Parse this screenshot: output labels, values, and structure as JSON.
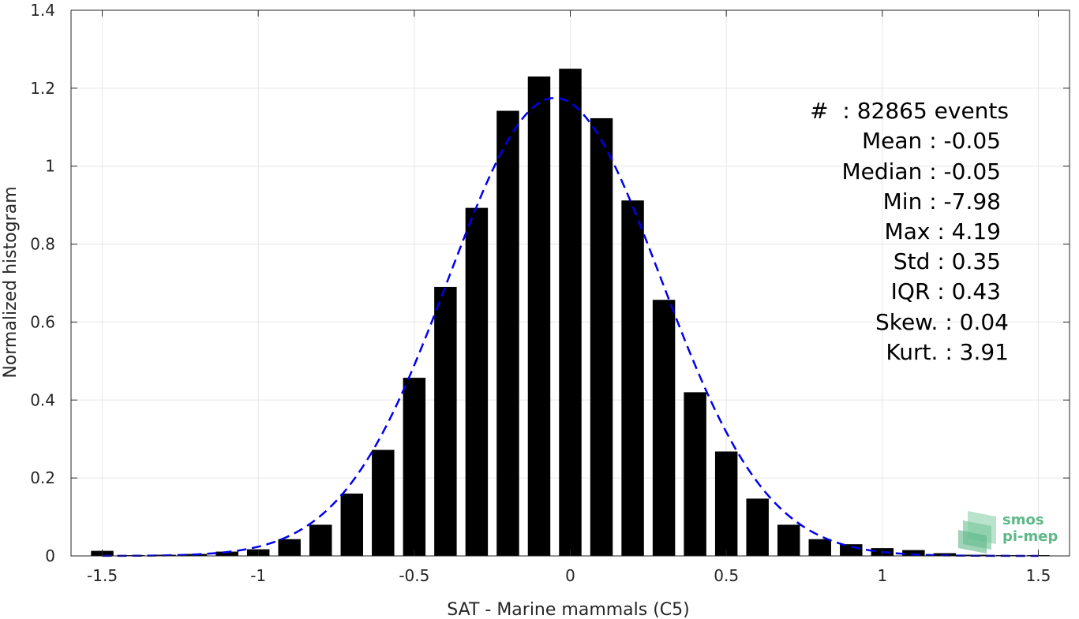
{
  "chart_data": {
    "type": "bar",
    "xlabel": "SAT - Marine mammals (C5)",
    "ylabel": "Normalized histogram",
    "xlim": [
      -1.6,
      1.6
    ],
    "ylim": [
      0,
      1.4
    ],
    "grid": true,
    "bar_color": "#000000",
    "fit_color": "#0000ee",
    "x_ticks": [
      -1.5,
      -1,
      -0.5,
      0,
      0.5,
      1,
      1.5
    ],
    "x_tick_labels": [
      "-1.5",
      "-1",
      "-0.5",
      "0",
      "0.5",
      "1",
      "1.5"
    ],
    "y_ticks": [
      0,
      0.2,
      0.4,
      0.6,
      0.8,
      1,
      1.2,
      1.4
    ],
    "y_tick_labels": [
      "0",
      "0.2",
      "0.4",
      "0.6",
      "0.8",
      "1",
      "1.2",
      "1.4"
    ],
    "bins": [
      -1.5,
      -1.4,
      -1.3,
      -1.2,
      -1.1,
      -1.0,
      -0.9,
      -0.8,
      -0.7,
      -0.6,
      -0.5,
      -0.4,
      -0.3,
      -0.2,
      -0.1,
      0.0,
      0.1,
      0.2,
      0.3,
      0.4,
      0.5,
      0.6,
      0.7,
      0.8,
      0.9,
      1.0,
      1.1,
      1.2,
      1.3,
      1.4,
      1.5
    ],
    "values": [
      0.013,
      0.002,
      0.003,
      0.005,
      0.011,
      0.017,
      0.043,
      0.08,
      0.16,
      0.272,
      0.457,
      0.69,
      0.893,
      1.142,
      1.23,
      1.25,
      1.123,
      0.912,
      0.657,
      0.42,
      0.268,
      0.147,
      0.08,
      0.043,
      0.03,
      0.02,
      0.015,
      0.007,
      0.003,
      0.002,
      0.002
    ],
    "fit": {
      "style": "dashed",
      "mean": -0.05,
      "std": 0.34,
      "peak": 1.175
    },
    "stats": [
      "#  : 82865 events",
      "Mean : -0.05",
      "Median : -0.05",
      "Min : -7.98",
      "Max : 4.19",
      "Std : 0.35",
      "IQR : 0.43",
      "Skew. : 0.04",
      "Kurt. : 3.91"
    ]
  },
  "logo": {
    "line1": "smos",
    "line2": "pi-mep",
    "color": "#5fb88a"
  }
}
